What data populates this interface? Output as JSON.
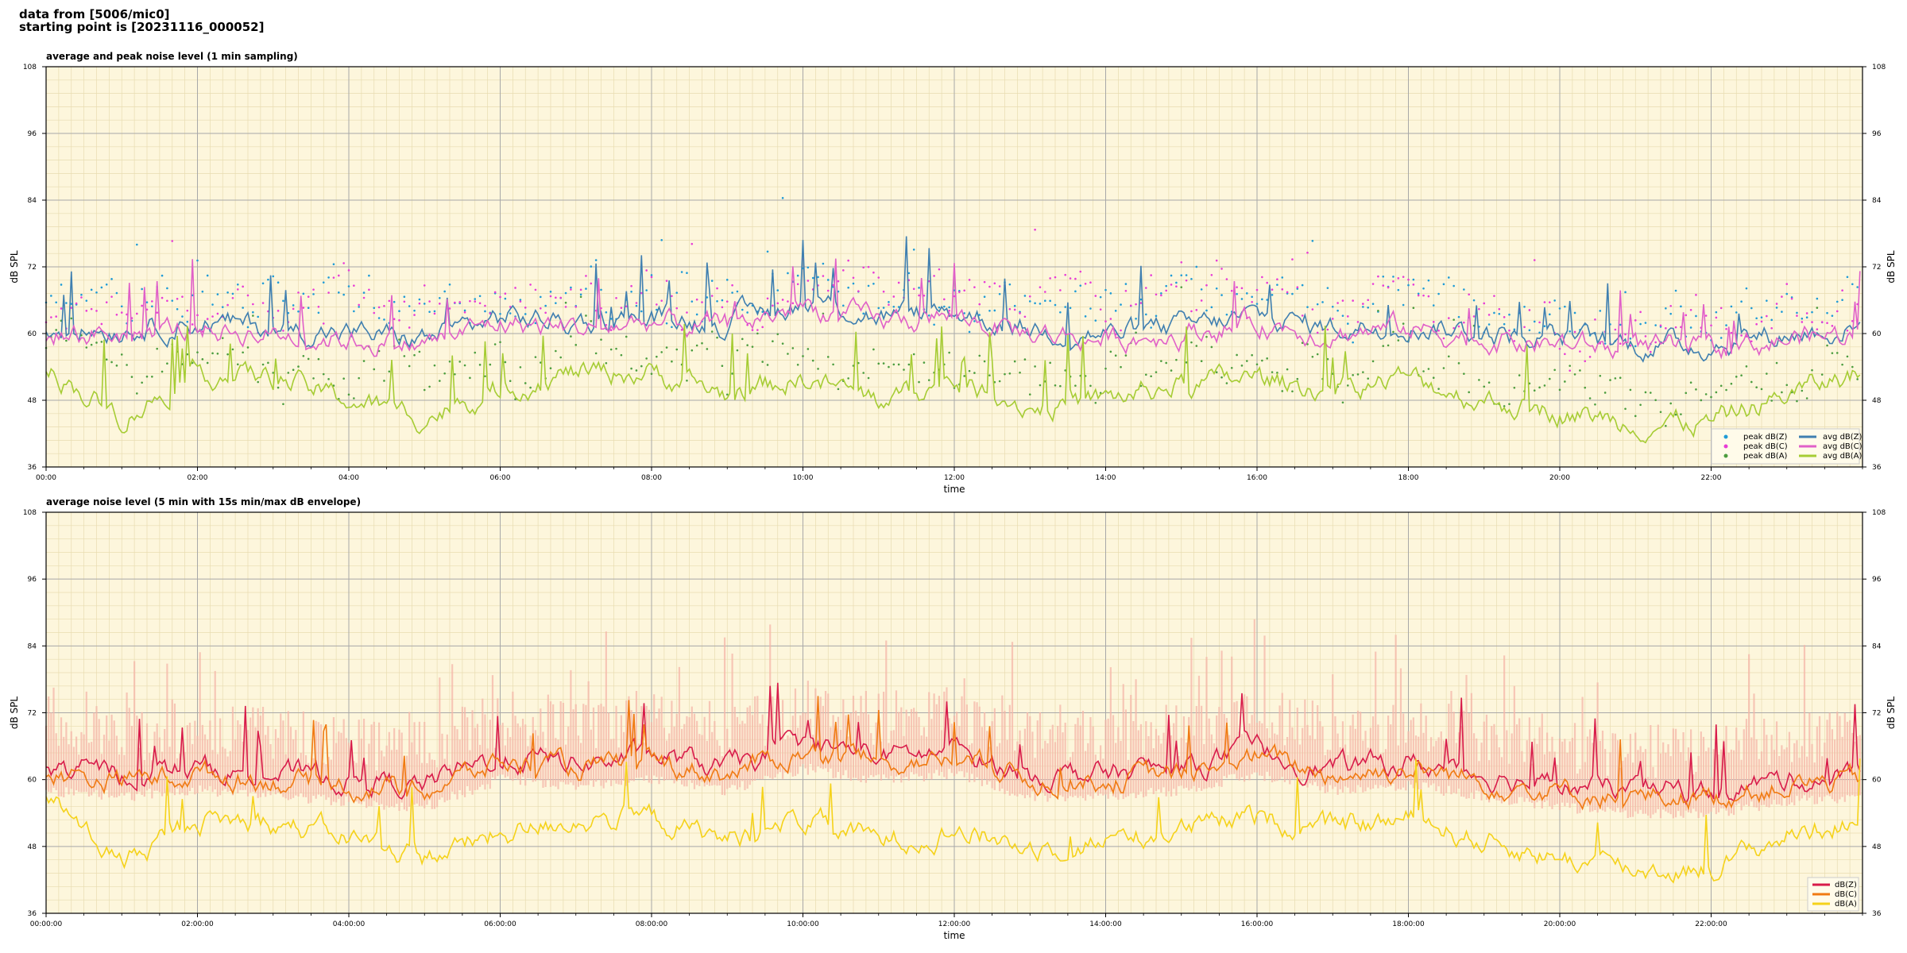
{
  "header": {
    "line1": "data from [5006/mic0]",
    "line2": "starting point is [20231116_000052]"
  },
  "chart_data": [
    {
      "type": "line",
      "title": "average and peak noise level (1 min sampling)",
      "xlabel": "time",
      "ylabel": "dB SPL",
      "ylim": [
        36,
        108
      ],
      "yticks": [
        36,
        48,
        60,
        72,
        84,
        96,
        108
      ],
      "x_range_hours": [
        0,
        24
      ],
      "x_tick_labels": [
        "00:00",
        "02:00",
        "04:00",
        "06:00",
        "08:00",
        "10:00",
        "12:00",
        "14:00",
        "16:00",
        "18:00",
        "20:00",
        "22:00"
      ],
      "grid": true,
      "legend_position": "bottom-right",
      "background": "#fdf6dc",
      "hourly_hours": [
        0,
        1,
        2,
        3,
        4,
        5,
        6,
        7,
        8,
        9,
        10,
        11,
        12,
        13,
        14,
        15,
        16,
        17,
        18,
        19,
        20,
        21,
        22,
        23,
        24
      ],
      "series": [
        {
          "name": "peak dB(Z)",
          "style": "dots",
          "color": "#1f9bd6",
          "values": [
            64,
            66,
            67,
            65,
            66,
            63,
            67,
            67,
            67,
            65,
            68,
            67,
            67,
            66,
            65,
            65,
            67,
            65,
            66,
            64,
            63,
            61,
            61,
            63,
            64
          ]
        },
        {
          "name": "peak dB(C)",
          "style": "dots",
          "color": "#e83cd6",
          "values": [
            63,
            65,
            66,
            64,
            65,
            62,
            66,
            66,
            66,
            64,
            67,
            66,
            66,
            65,
            64,
            64,
            66,
            64,
            65,
            63,
            62,
            60,
            60,
            62,
            63
          ]
        },
        {
          "name": "peak dB(A)",
          "style": "dots",
          "color": "#4c9d3f",
          "values": [
            57,
            54,
            55,
            55,
            52,
            51,
            54,
            56,
            56,
            53,
            55,
            52,
            54,
            51,
            52,
            54,
            55,
            53,
            55,
            51,
            49,
            48,
            48,
            52,
            55
          ]
        },
        {
          "name": "avg dB(Z)",
          "style": "line",
          "color": "#3f7fb0",
          "values": [
            61,
            61,
            62,
            61,
            60,
            59,
            63,
            62,
            63,
            62,
            66,
            63,
            64,
            61,
            60,
            61,
            63,
            61,
            62,
            60,
            59,
            58,
            58,
            60,
            61
          ]
        },
        {
          "name": "avg dB(C)",
          "style": "line",
          "color": "#e060c8",
          "values": [
            60,
            60,
            61,
            60,
            59,
            58,
            62,
            61,
            62,
            61,
            65,
            62,
            63,
            60,
            59,
            60,
            62,
            60,
            61,
            59,
            58,
            57,
            57,
            59,
            60
          ]
        },
        {
          "name": "avg dB(A)",
          "style": "line",
          "color": "#a6cc34",
          "values": [
            54,
            45,
            53,
            52,
            48,
            45,
            50,
            53,
            53,
            49,
            52,
            48,
            51,
            47,
            48,
            51,
            52,
            50,
            52,
            48,
            46,
            44,
            44,
            49,
            53
          ]
        }
      ]
    },
    {
      "type": "line",
      "title": "average noise level (5 min with 15s min/max dB envelope)",
      "xlabel": "time",
      "ylabel": "dB SPL",
      "ylim": [
        36,
        108
      ],
      "yticks": [
        36,
        48,
        60,
        72,
        84,
        96,
        108
      ],
      "x_range_hours": [
        0,
        24
      ],
      "x_tick_labels": [
        "00:00:00",
        "02:00:00",
        "04:00:00",
        "06:00:00",
        "08:00:00",
        "10:00:00",
        "12:00:00",
        "14:00:00",
        "16:00:00",
        "18:00:00",
        "20:00:00",
        "22:00:00"
      ],
      "grid": true,
      "legend_position": "bottom-right",
      "background": "#fdf6dc",
      "envelope": {
        "color": "#f4b6a8",
        "min_offset": -3,
        "max_offset": 10
      },
      "hourly_hours": [
        0,
        1,
        2,
        3,
        4,
        5,
        6,
        7,
        8,
        9,
        10,
        11,
        12,
        13,
        14,
        15,
        16,
        17,
        18,
        19,
        20,
        21,
        22,
        23,
        24
      ],
      "series": [
        {
          "name": "dB(Z)",
          "color": "#d81b4a",
          "values": [
            62,
            61,
            62,
            61,
            60,
            59,
            64,
            63,
            64,
            62,
            66,
            64,
            65,
            61,
            61,
            62,
            65,
            62,
            63,
            61,
            59,
            58,
            58,
            60,
            61
          ]
        },
        {
          "name": "dB(C)",
          "color": "#f07a12",
          "values": [
            61,
            60,
            61,
            60,
            59,
            58,
            63,
            62,
            63,
            61,
            65,
            63,
            64,
            60,
            60,
            61,
            64,
            61,
            62,
            60,
            58,
            57,
            57,
            59,
            60
          ]
        },
        {
          "name": "dB(A)",
          "color": "#f5d21a",
          "values": [
            57,
            45,
            53,
            52,
            50,
            46,
            50,
            53,
            53,
            49,
            53,
            49,
            51,
            48,
            49,
            51,
            53,
            51,
            53,
            49,
            46,
            44,
            44,
            50,
            53
          ]
        }
      ]
    }
  ]
}
